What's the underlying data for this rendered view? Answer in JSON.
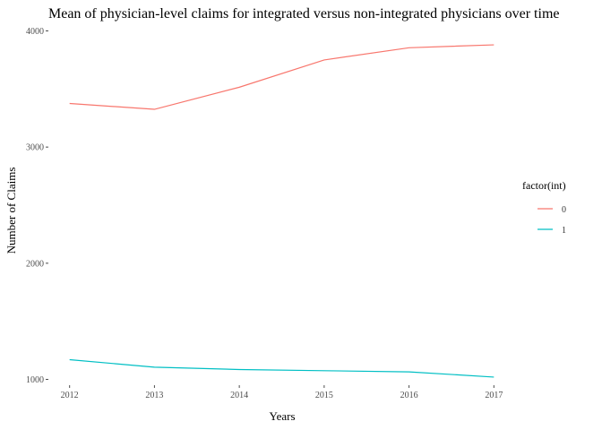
{
  "chart_data": {
    "type": "line",
    "title": "Mean of physician-level claims for integrated versus non-integrated physicians over time",
    "xlabel": "Years",
    "ylabel": "Number of Claims",
    "x": [
      2012,
      2013,
      2014,
      2015,
      2016,
      2017
    ],
    "xticks": [
      "2012",
      "2013",
      "2014",
      "2015",
      "2016",
      "2017"
    ],
    "yticks": [
      1000,
      2000,
      3000,
      4000
    ],
    "ytick_labels": [
      "1000",
      "2000",
      "3000",
      "4000"
    ],
    "xlim": [
      2011.75,
      2017.25
    ],
    "ylim": [
      950,
      4050
    ],
    "grid": false,
    "legend": {
      "title": "factor(int)",
      "placement": "right"
    },
    "series": [
      {
        "name": "0",
        "color": "#F8766D",
        "values": [
          3375,
          3325,
          3515,
          3750,
          3855,
          3880
        ]
      },
      {
        "name": "1",
        "color": "#00BFC4",
        "values": [
          1170,
          1105,
          1085,
          1075,
          1065,
          1020
        ]
      }
    ]
  }
}
